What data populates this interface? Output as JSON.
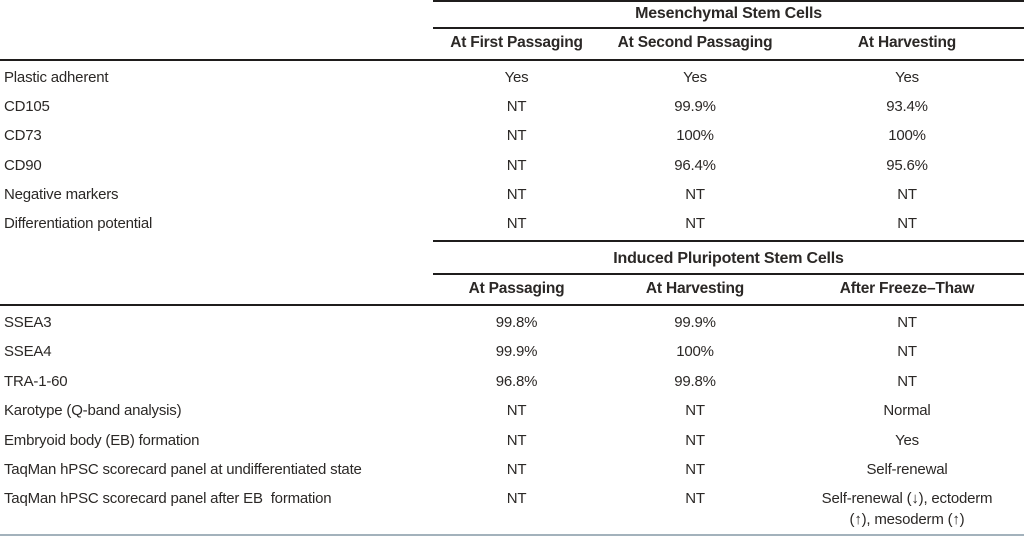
{
  "page": {
    "background_color": "#ffffff",
    "text_color": "#2b2826",
    "rule_color": "#1f1d1c",
    "bottom_rule_color": "#a3b2bc"
  },
  "sections": [
    {
      "title": "Mesenchymal Stem Cells",
      "columns": [
        "At First Passaging",
        "At Second Passaging",
        "At Harvesting"
      ],
      "rows": [
        {
          "label": "Plastic adherent",
          "values": [
            "Yes",
            "Yes",
            "Yes"
          ]
        },
        {
          "label": "CD105",
          "values": [
            "NT",
            "99.9%",
            "93.4%"
          ]
        },
        {
          "label": "CD73",
          "values": [
            "NT",
            "100%",
            "100%"
          ]
        },
        {
          "label": "CD90",
          "values": [
            "NT",
            "96.4%",
            "95.6%"
          ]
        },
        {
          "label": "Negative markers",
          "values": [
            "NT",
            "NT",
            "NT"
          ]
        },
        {
          "label": "Differentiation potential",
          "values": [
            "NT",
            "NT",
            "NT"
          ]
        }
      ]
    },
    {
      "title": "Induced Pluripotent Stem Cells",
      "columns": [
        "At Passaging",
        "At Harvesting",
        "After Freeze–Thaw"
      ],
      "rows": [
        {
          "label": "SSEA3",
          "values": [
            "99.8%",
            "99.9%",
            "NT"
          ]
        },
        {
          "label": "SSEA4",
          "values": [
            "99.9%",
            "100%",
            "NT"
          ]
        },
        {
          "label": "TRA-1-60",
          "values": [
            "96.8%",
            "99.8%",
            "NT"
          ]
        },
        {
          "label": "Karotype (Q-band analysis)",
          "values": [
            "NT",
            "NT",
            "Normal"
          ]
        },
        {
          "label": "Embryoid body (EB) formation",
          "values": [
            "NT",
            "NT",
            "Yes"
          ]
        },
        {
          "label": "TaqMan hPSC scorecard panel at undifferentiated state",
          "values": [
            "NT",
            "NT",
            "Self-renewal"
          ]
        },
        {
          "label": "TaqMan hPSC scorecard panel after EB  formation",
          "values": [
            "NT",
            "NT",
            "Self-renewal (↓), ectoderm\n(↑), mesoderm (↑)"
          ]
        }
      ]
    }
  ]
}
